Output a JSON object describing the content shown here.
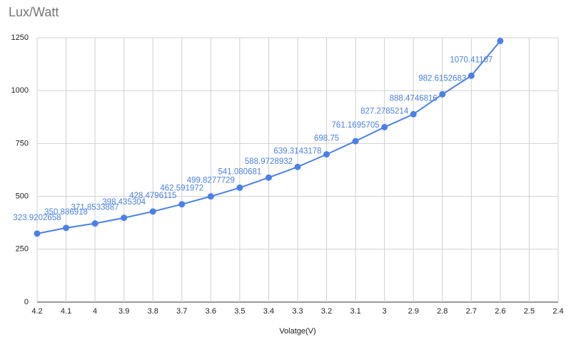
{
  "chart_data": {
    "type": "line",
    "title": "Lux/Watt",
    "x_label": "Volatge(V)",
    "categories": [
      "4.2",
      "4.1",
      "4",
      "3.9",
      "3.8",
      "3.7",
      "3.6",
      "3.5",
      "3.4",
      "3.3",
      "3.2",
      "3.1",
      "3",
      "2.9",
      "2.8",
      "2.7",
      "2.6",
      "2.5",
      "2.4"
    ],
    "series": [
      {
        "name": "Lux/Watt",
        "color": "#4a80e8",
        "values": [
          323.9202658,
          350.886918,
          371.8533887,
          398.435304,
          428.4796115,
          462.591972,
          499.8277729,
          541.080681,
          588.9728932,
          639.3143178,
          698.75,
          761.1695705,
          827.2785214,
          888.4746816,
          982.6152683,
          1070.41107,
          1235,
          null,
          null
        ],
        "value_labels": [
          "323.9202658",
          "350.886918",
          "371.8533887",
          "398.435304",
          "428.4796115",
          "462.591972",
          "499.8277729",
          "541.080681",
          "588.9728932",
          "639.3143178",
          "698.75",
          "761.1695705",
          "827.2785214",
          "888.4746816",
          "982.6152683",
          "1070.41107",
          null,
          null,
          null
        ]
      }
    ],
    "ylim": [
      0,
      1250
    ],
    "yticks": [
      0,
      250,
      500,
      750,
      1000,
      1250
    ],
    "grid": true
  }
}
